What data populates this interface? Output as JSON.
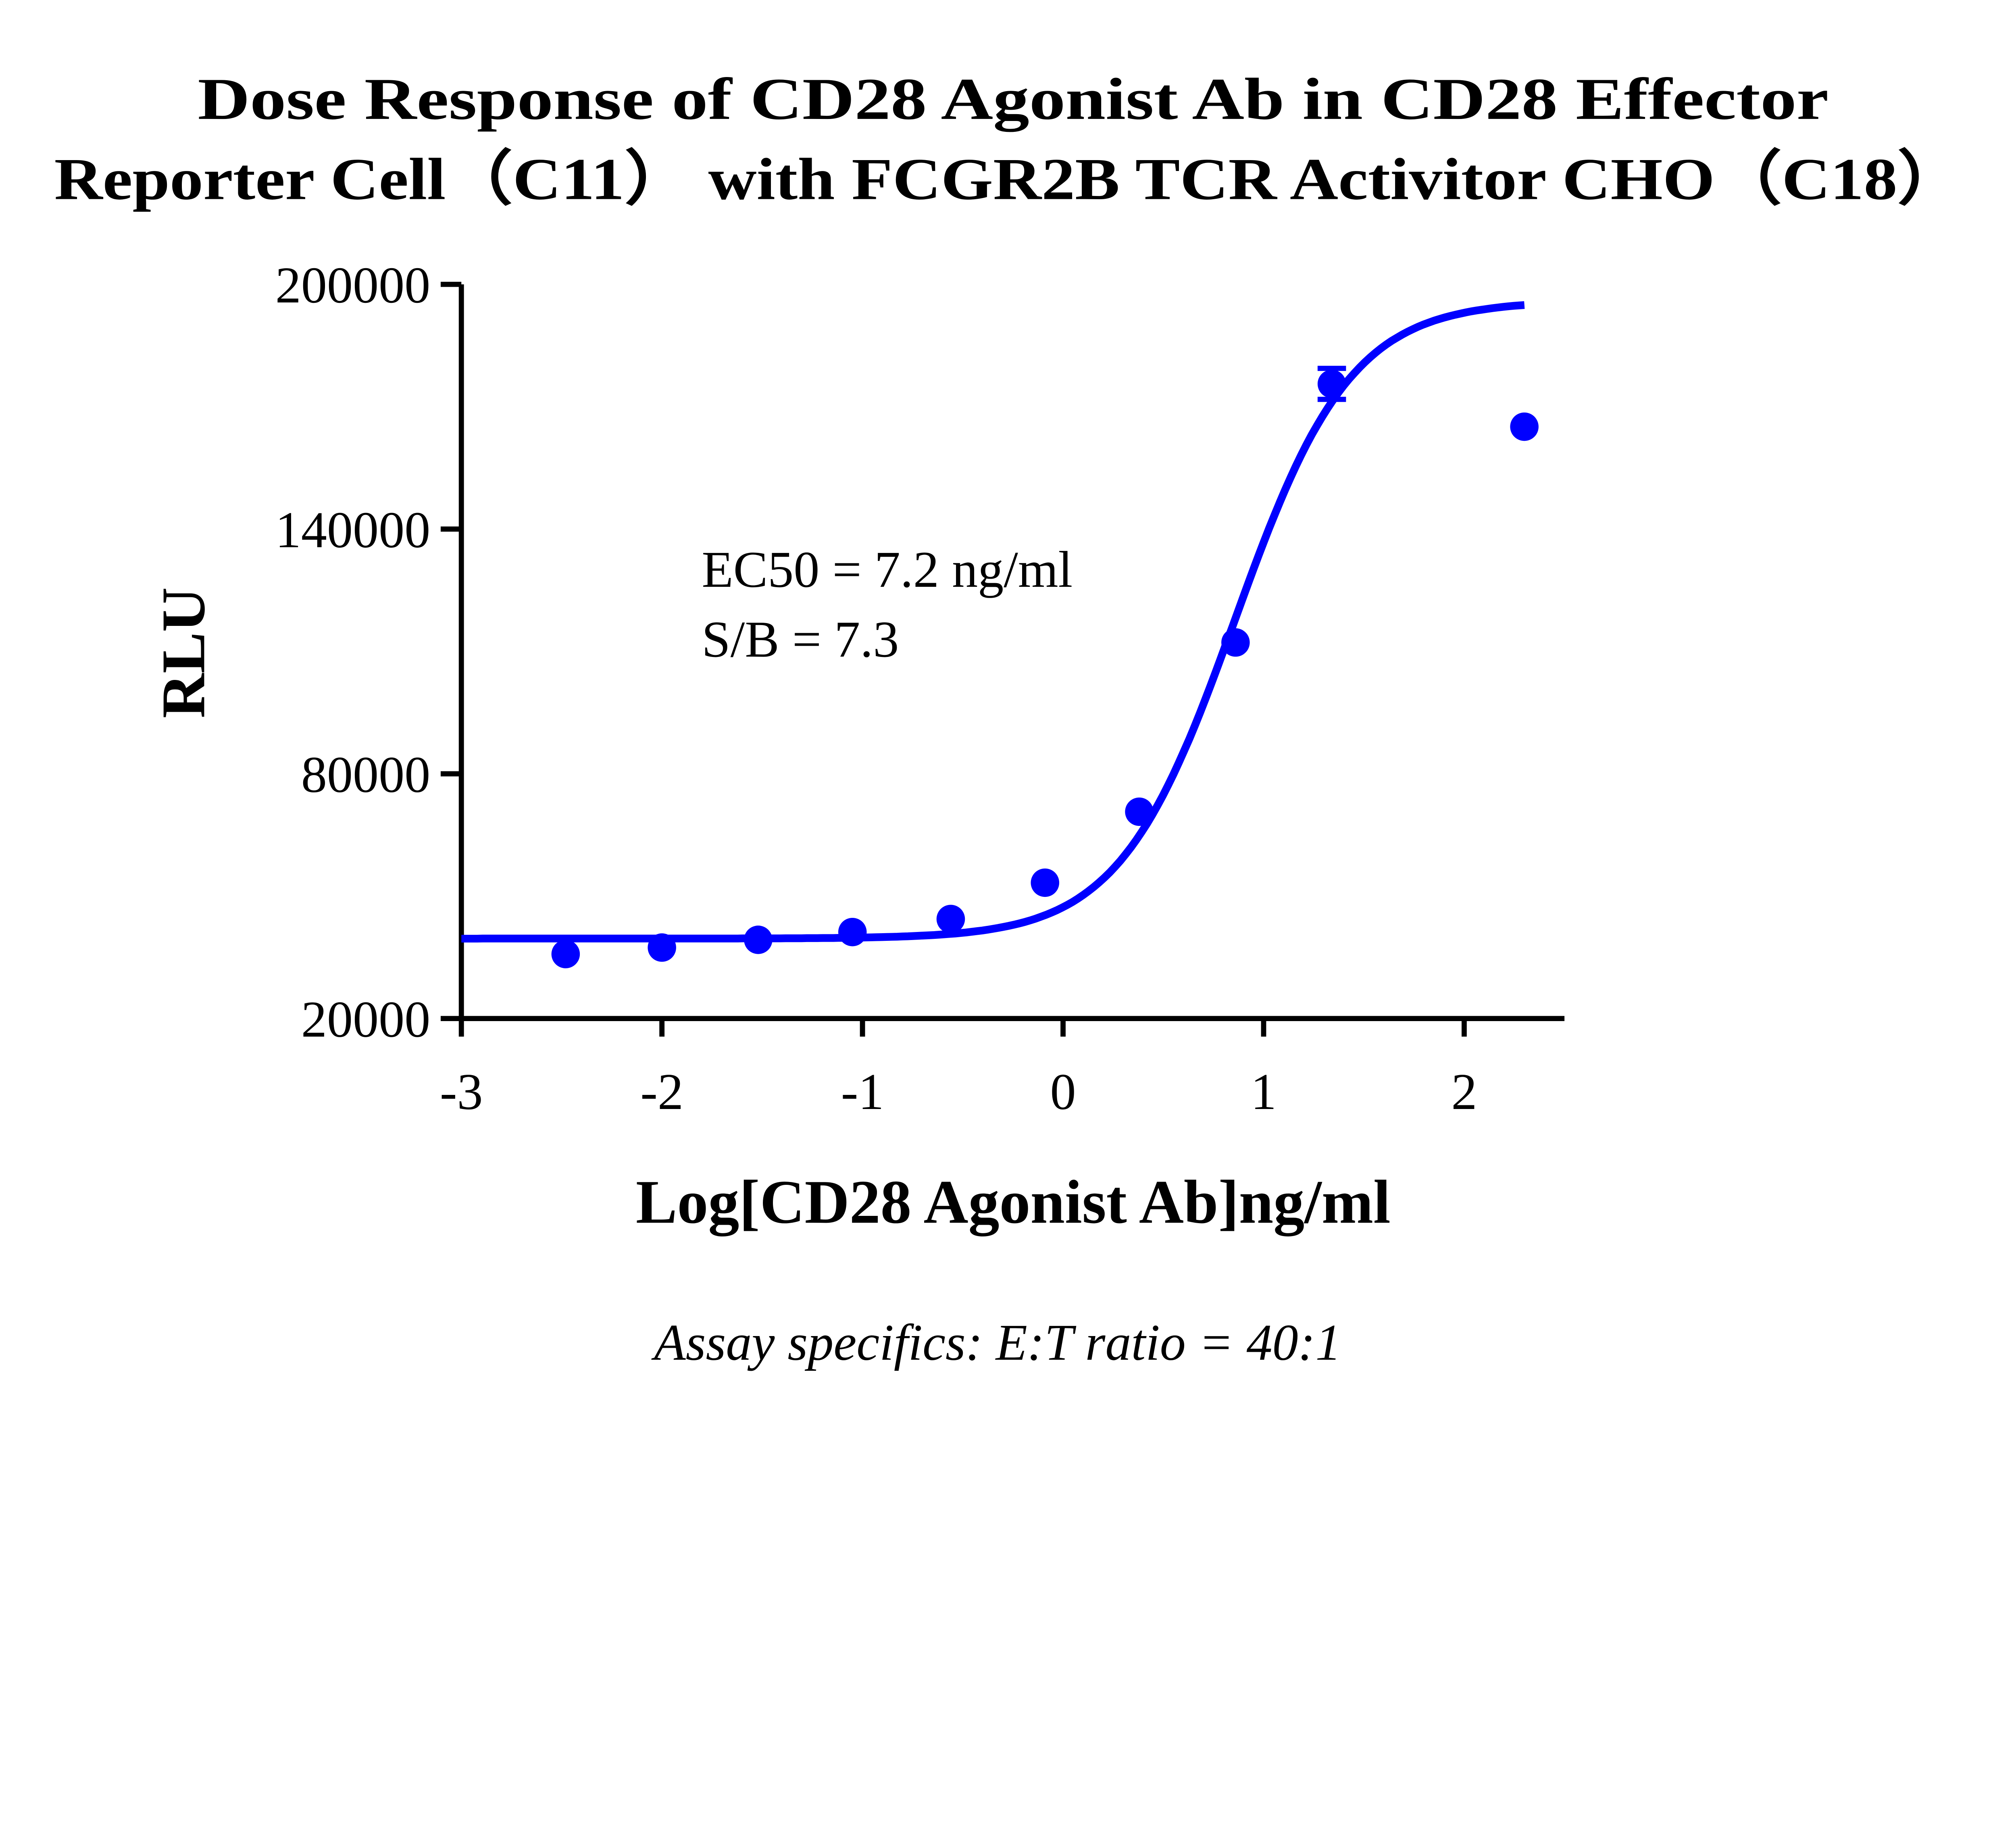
{
  "chart_data": {
    "type": "scatter",
    "title_lines": [
      "Dose Response of CD28 Agonist Ab in CD28 Effector",
      "Reporter Cell（C11） with FCGR2B TCR Activitor CHO（C18）"
    ],
    "xlabel": "Log[CD28 Agonist Ab]ng/ml",
    "ylabel": "RLU",
    "xlim": [
      -3,
      2.5
    ],
    "ylim": [
      20000,
      200000
    ],
    "x_ticks": [
      -3,
      -2,
      -1,
      0,
      1,
      2
    ],
    "x_tick_labels": [
      "-3",
      "-2",
      "-1",
      "0",
      "1",
      "2"
    ],
    "y_ticks": [
      20000,
      80000,
      140000,
      200000
    ],
    "y_tick_labels": [
      "20000",
      "80000",
      "140000",
      "200000"
    ],
    "grid": false,
    "color": "#0000FF",
    "points": [
      {
        "x": -2.48,
        "y": 35800
      },
      {
        "x": -2.0,
        "y": 37400
      },
      {
        "x": -1.52,
        "y": 39300
      },
      {
        "x": -1.05,
        "y": 41200
      },
      {
        "x": -0.56,
        "y": 44400
      },
      {
        "x": -0.09,
        "y": 53300
      },
      {
        "x": 0.38,
        "y": 70700
      },
      {
        "x": 0.86,
        "y": 112200
      },
      {
        "x": 1.34,
        "y": 175600,
        "err": 3800
      },
      {
        "x": 2.3,
        "y": 165100
      }
    ],
    "fit": {
      "model": "4PL",
      "bottom": 39600,
      "top": 196000,
      "logEC50": 0.857,
      "hill": 1.5,
      "x_range": [
        -3,
        2.3
      ]
    },
    "annotations": [
      "EC50 = 7.2 ng/ml",
      "S/B = 7.3"
    ],
    "footnote": "Assay specifics: E:T ratio = 40:1"
  }
}
